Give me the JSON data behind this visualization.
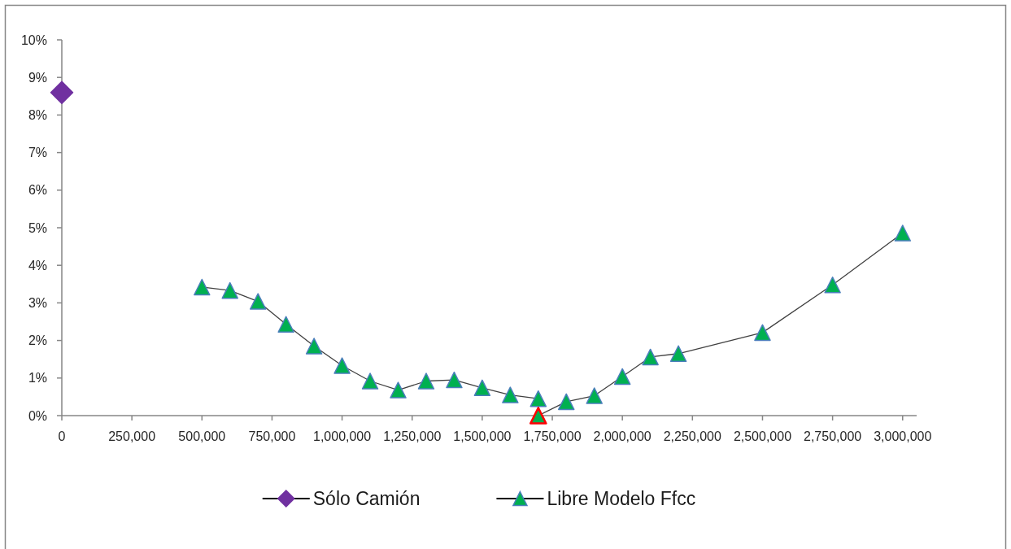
{
  "chart_data": {
    "type": "line",
    "xlim": [
      0,
      3050000
    ],
    "xticks": [
      0,
      {
        "value": 250000,
        "label": "250,000"
      },
      {
        "value": 500000,
        "label": "500,000"
      },
      {
        "value": 750000,
        "label": "750,000"
      },
      {
        "value": 1000000,
        "label": "1,000,000"
      },
      {
        "value": 1250000,
        "label": "1,250,000"
      },
      {
        "value": 1500000,
        "label": "1,500,000"
      },
      {
        "value": 1750000,
        "label": "1,750,000"
      },
      {
        "value": 2000000,
        "label": "2,000,000"
      },
      {
        "value": 2250000,
        "label": "2,250,000"
      },
      {
        "value": 2500000,
        "label": "2,500,000"
      },
      {
        "value": 2750000,
        "label": "2,750,000"
      },
      {
        "value": 3000000,
        "label": "3,000,000"
      }
    ],
    "ylim": [
      0,
      10
    ],
    "yticks": [
      {
        "value": 0,
        "label": "0%"
      },
      {
        "value": 1,
        "label": "1%"
      },
      {
        "value": 2,
        "label": "2%"
      },
      {
        "value": 3,
        "label": "3%"
      },
      {
        "value": 4,
        "label": "4%"
      },
      {
        "value": 5,
        "label": "5%"
      },
      {
        "value": 6,
        "label": "6%"
      },
      {
        "value": 7,
        "label": "7%"
      },
      {
        "value": 8,
        "label": "8%"
      },
      {
        "value": 9,
        "label": "9%"
      },
      {
        "value": 10,
        "label": "10%"
      }
    ],
    "legend": "bottom",
    "series": [
      {
        "name": "Sólo Camión",
        "color": "#7030a0",
        "marker": "diamond",
        "x": [
          0
        ],
        "values": [
          8.6
        ]
      },
      {
        "name": "Libre Modelo Ffcc",
        "color": "#00b050",
        "marker": "triangle",
        "x": [
          500000,
          600000,
          700000,
          800000,
          900000,
          1000000,
          1100000,
          1200000,
          1300000,
          1400000,
          1500000,
          1600000,
          1700000,
          1700000,
          1800000,
          1900000,
          2000000,
          2100000,
          2200000,
          2500000,
          2750000,
          3000000
        ],
        "values": [
          3.42,
          3.33,
          3.04,
          2.43,
          1.85,
          1.33,
          0.92,
          0.68,
          0.92,
          0.95,
          0.74,
          0.55,
          0.45,
          0,
          0.37,
          0.53,
          1.04,
          1.56,
          1.65,
          2.21,
          3.48,
          4.86
        ]
      },
      {
        "type": "scatter",
        "color": "#ff0000",
        "marker": "triangle",
        "x": [
          1700000
        ],
        "values": [
          0
        ]
      }
    ]
  }
}
